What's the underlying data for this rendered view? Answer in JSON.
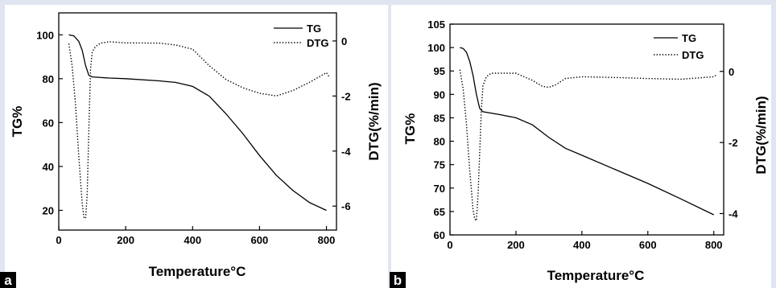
{
  "chart_data": [
    {
      "type": "line",
      "panel_label": "a",
      "xlabel": "Temperature°C",
      "ylabel": "TG%",
      "y2label": "DTG(%/min)",
      "xlim": [
        0,
        830
      ],
      "ylim": [
        11,
        110
      ],
      "y2lim": [
        -6.87,
        1.02
      ],
      "xticks": [
        0,
        200,
        400,
        600,
        800
      ],
      "yticks": [
        20,
        40,
        60,
        80,
        100
      ],
      "y2ticks": [
        -6,
        -4,
        -2,
        0
      ],
      "grid": false,
      "legend": "top-right",
      "series": [
        {
          "name": "TG",
          "axis": "left",
          "style": "solid",
          "x": [
            30,
            45,
            60,
            70,
            80,
            90,
            100,
            150,
            200,
            300,
            350,
            400,
            450,
            500,
            550,
            600,
            650,
            700,
            750,
            800
          ],
          "y": [
            100,
            99.5,
            97,
            93,
            86,
            81.5,
            80.8,
            80.3,
            80,
            79,
            78.3,
            76.5,
            72,
            64,
            55,
            45,
            36,
            29,
            23.5,
            20
          ]
        },
        {
          "name": "DTG",
          "axis": "right",
          "style": "dotted",
          "x": [
            30,
            40,
            50,
            60,
            70,
            75,
            80,
            85,
            90,
            95,
            100,
            110,
            125,
            150,
            200,
            300,
            350,
            400,
            450,
            500,
            550,
            600,
            650,
            700,
            750,
            800,
            808
          ],
          "y": [
            -0.1,
            -0.9,
            -2.3,
            -4.2,
            -5.9,
            -6.4,
            -6.45,
            -5.6,
            -3.2,
            -1.0,
            -0.4,
            -0.2,
            -0.08,
            -0.03,
            -0.07,
            -0.08,
            -0.15,
            -0.3,
            -0.9,
            -1.4,
            -1.7,
            -1.9,
            -2.0,
            -1.8,
            -1.5,
            -1.15,
            -1.3
          ]
        }
      ]
    },
    {
      "type": "line",
      "panel_label": "b",
      "xlabel": "Temperature°C",
      "ylabel": "TG%",
      "y2label": "DTG(%/min)",
      "xlim": [
        0,
        830
      ],
      "ylim": [
        60,
        105
      ],
      "y2lim": [
        -4.6,
        1.33
      ],
      "xticks": [
        0,
        200,
        400,
        600,
        800
      ],
      "yticks": [
        60,
        65,
        70,
        75,
        80,
        85,
        90,
        95,
        100,
        105
      ],
      "y2ticks": [
        -4,
        -2,
        0
      ],
      "grid": false,
      "legend": "top-right",
      "series": [
        {
          "name": "TG",
          "axis": "left",
          "style": "solid",
          "x": [
            30,
            40,
            50,
            60,
            70,
            80,
            90,
            100,
            150,
            200,
            250,
            300,
            350,
            400,
            500,
            600,
            700,
            800
          ],
          "y": [
            100,
            99.8,
            99,
            97,
            94,
            90,
            87,
            86.3,
            85.7,
            85,
            83.5,
            80.8,
            78.5,
            77,
            74,
            71,
            67.7,
            64.3
          ]
        },
        {
          "name": "DTG",
          "axis": "right",
          "style": "dotted",
          "x": [
            30,
            40,
            50,
            60,
            70,
            75,
            80,
            85,
            90,
            95,
            100,
            110,
            125,
            150,
            200,
            250,
            280,
            300,
            320,
            350,
            400,
            500,
            600,
            700,
            800,
            808
          ],
          "y": [
            0.05,
            -0.5,
            -1.5,
            -2.8,
            -3.9,
            -4.15,
            -4.2,
            -3.5,
            -2.3,
            -1.1,
            -0.4,
            -0.15,
            -0.05,
            -0.05,
            -0.05,
            -0.25,
            -0.42,
            -0.45,
            -0.38,
            -0.2,
            -0.15,
            -0.17,
            -0.2,
            -0.22,
            -0.15,
            -0.1
          ]
        }
      ]
    }
  ]
}
